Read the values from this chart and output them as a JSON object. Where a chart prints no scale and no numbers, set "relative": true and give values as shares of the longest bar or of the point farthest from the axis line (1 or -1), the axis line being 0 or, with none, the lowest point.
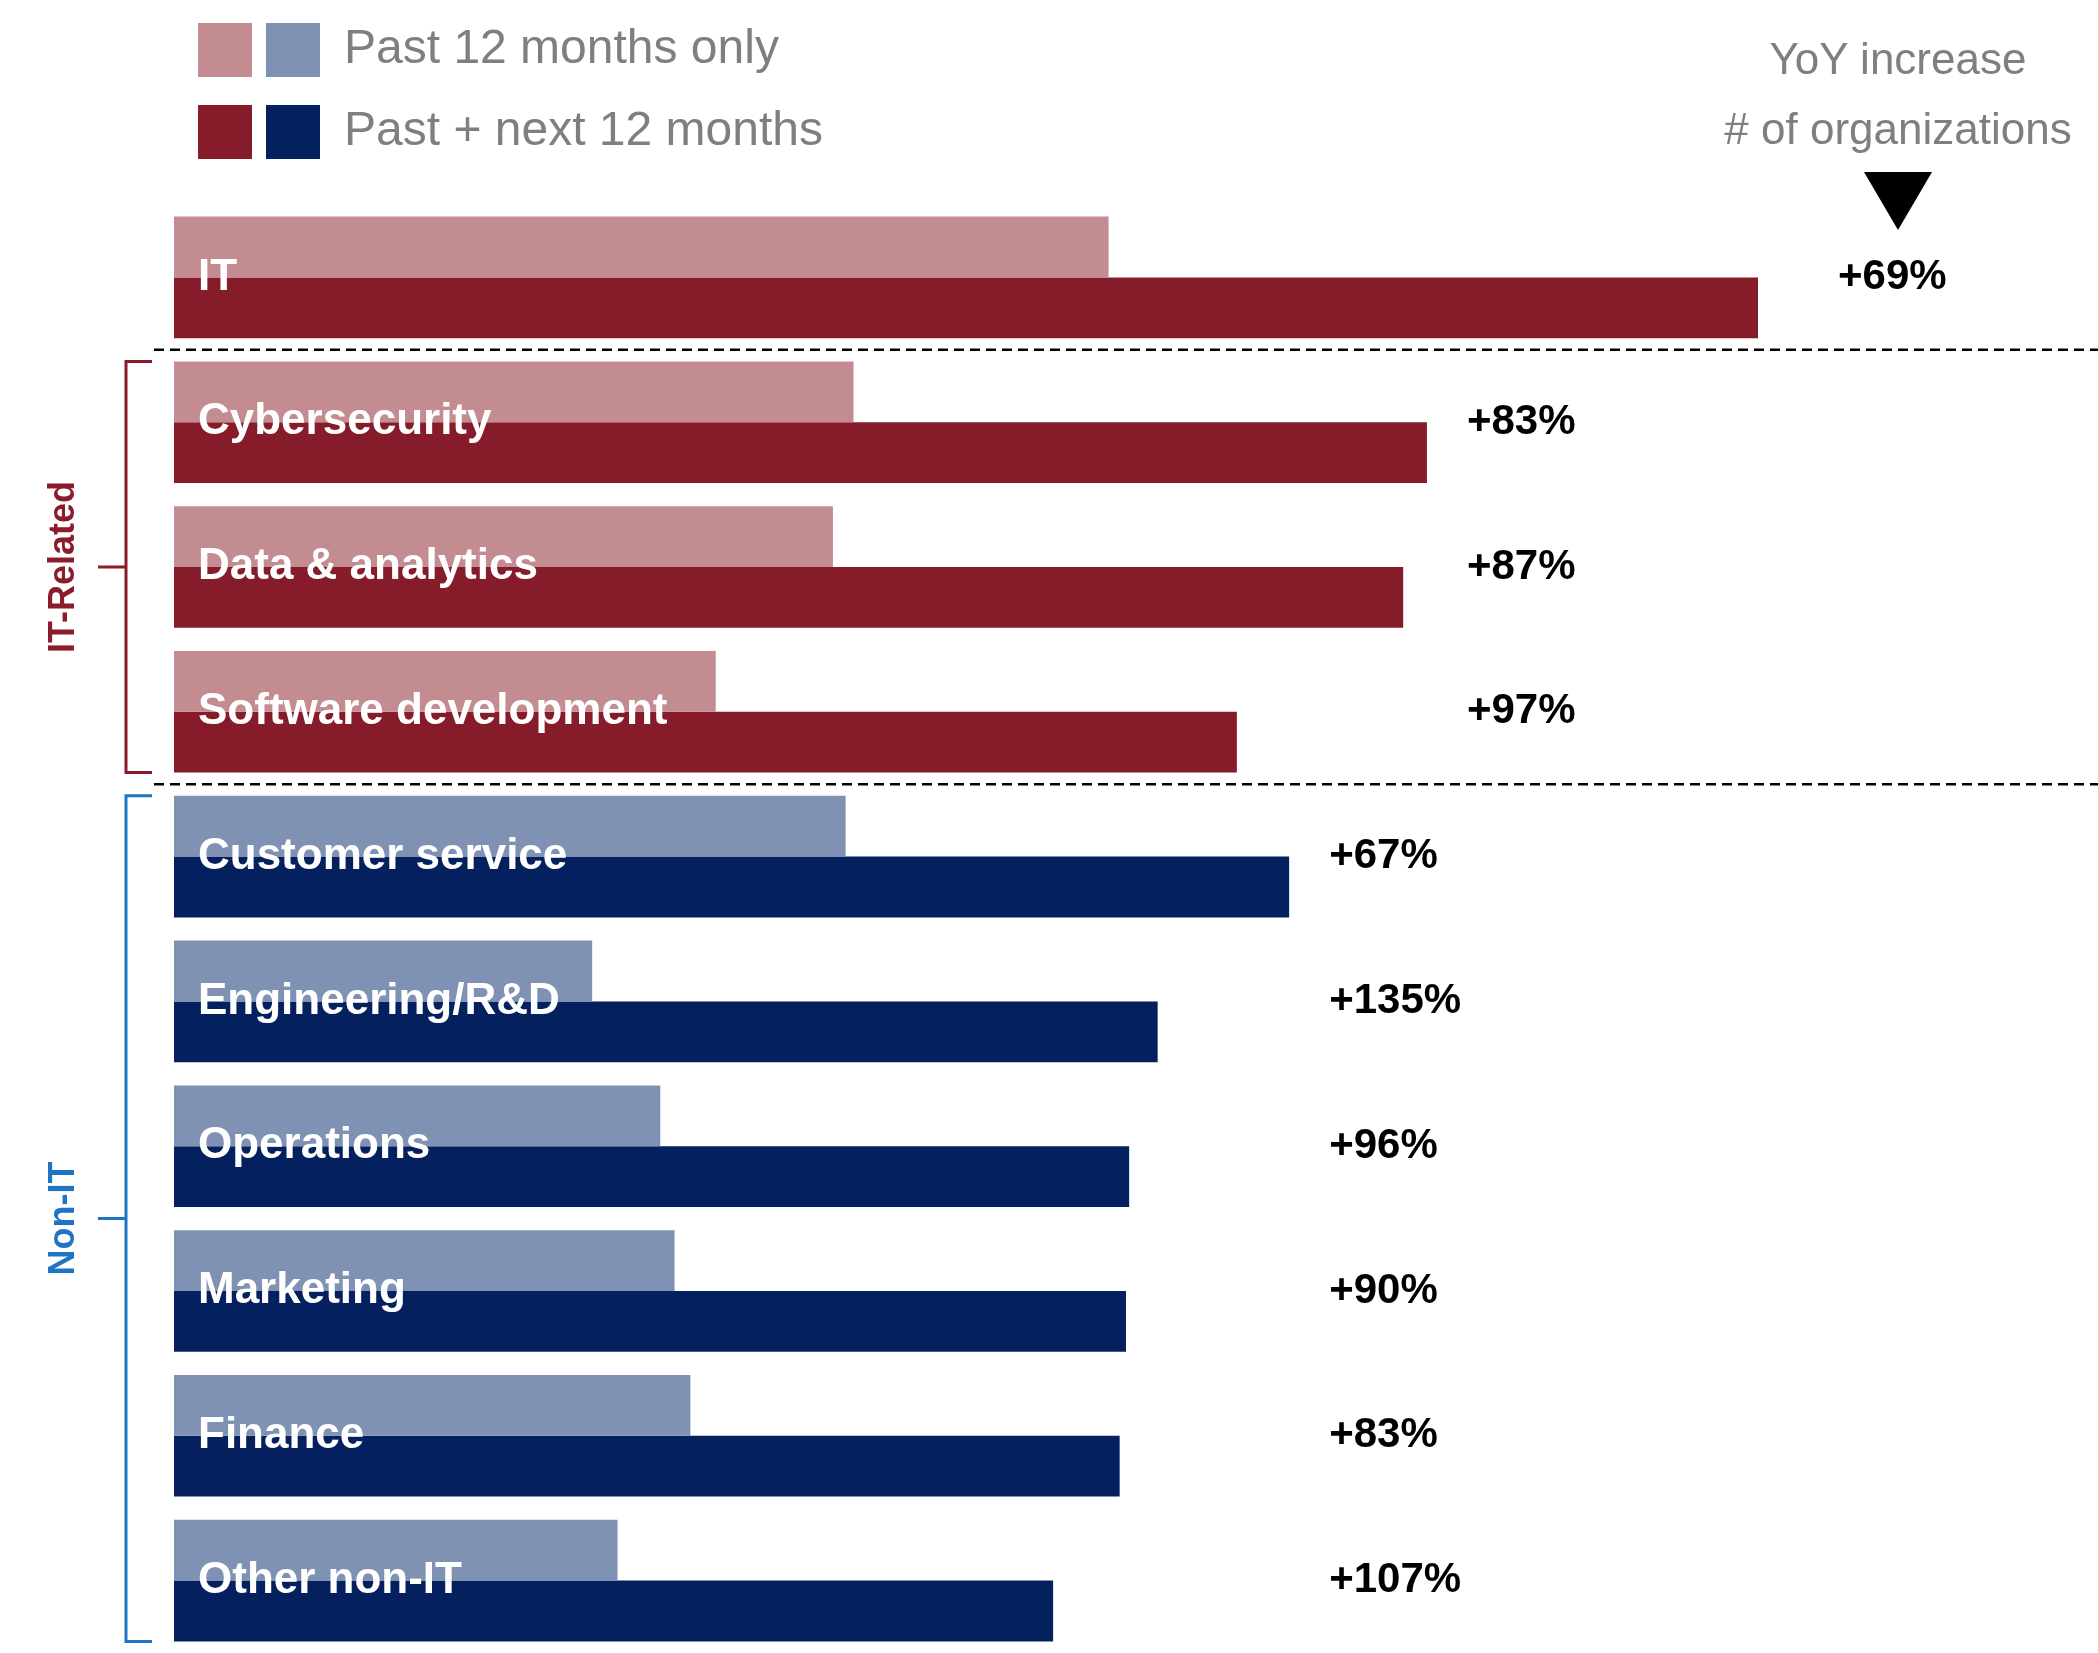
{
  "chart_data": {
    "type": "bar",
    "orientation": "horizontal",
    "relative": true,
    "legend": "top left",
    "categories": [
      "IT",
      "Cybersecurity",
      "Data & analytics",
      "Software development",
      "Customer service",
      "Engineering/R&D",
      "Operations",
      "Marketing",
      "Finance",
      "Other non-IT"
    ],
    "series": [
      {
        "name": "Past 12 months only",
        "colors": [
          "#c38c91",
          "#c38c91",
          "#c38c91",
          "#c38c91",
          "#8092b3",
          "#8092b3",
          "#8092b3",
          "#8092b3",
          "#8092b3",
          "#8092b3"
        ],
        "values": [
          0.59,
          0.429,
          0.416,
          0.342,
          0.424,
          0.264,
          0.307,
          0.316,
          0.326,
          0.28
        ]
      },
      {
        "name": "Past + next 12 months",
        "colors": [
          "#861c2a",
          "#861c2a",
          "#861c2a",
          "#861c2a",
          "#04205e",
          "#04205e",
          "#04205e",
          "#04205e",
          "#04205e",
          "#04205e"
        ],
        "values": [
          1,
          0.791,
          0.776,
          0.671,
          0.704,
          0.621,
          0.603,
          0.601,
          0.597,
          0.555
        ]
      }
    ],
    "annotations": [
      "YoY increase\n# of organizations",
      "+69%",
      "+83%",
      "+87%",
      "+97%",
      "+67%",
      "+135%",
      "+96%",
      "+90%",
      "+83%",
      "+107%",
      "IT-Related",
      "Non-IT"
    ]
  }
}
